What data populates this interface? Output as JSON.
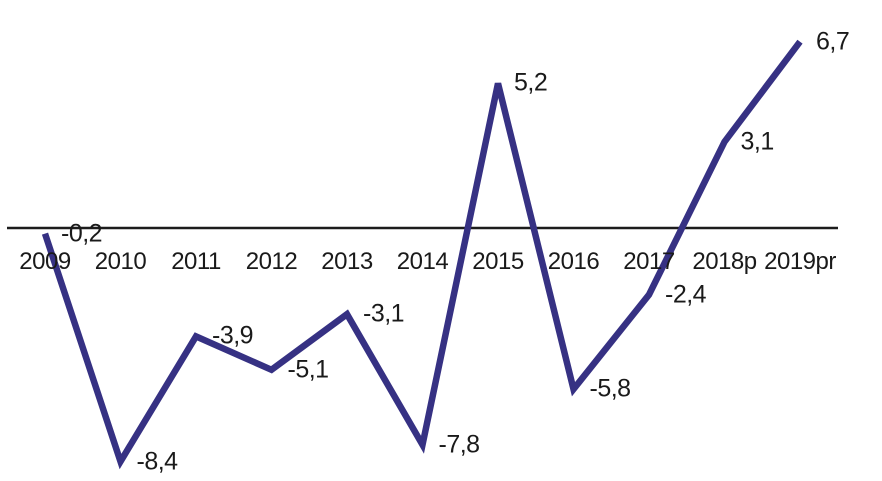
{
  "chart_data": {
    "type": "line",
    "categories": [
      "2009",
      "2010",
      "2011",
      "2012",
      "2013",
      "2014",
      "2015",
      "2016",
      "2017",
      "2018p",
      "2019pr"
    ],
    "values": [
      -0.2,
      -8.4,
      -3.9,
      -5.1,
      -3.1,
      -7.8,
      5.2,
      -5.8,
      -2.4,
      3.1,
      6.7
    ],
    "point_labels": [
      "-0,2",
      "-8,4",
      "-3,9",
      "-5,1",
      "-3,1",
      "-7,8",
      "5,2",
      "-5,8",
      "-2,4",
      "3,1",
      "6,7"
    ],
    "title": "",
    "xlabel": "",
    "ylabel": "",
    "ylim": [
      -9.2,
      7.3
    ],
    "grid": false,
    "legend_position": "none",
    "series_name": "annual-change-line",
    "colors": {
      "line": "#363183",
      "axis": "#1c1c1c",
      "text": "#1a1a1a",
      "background": "#ffffff"
    }
  }
}
